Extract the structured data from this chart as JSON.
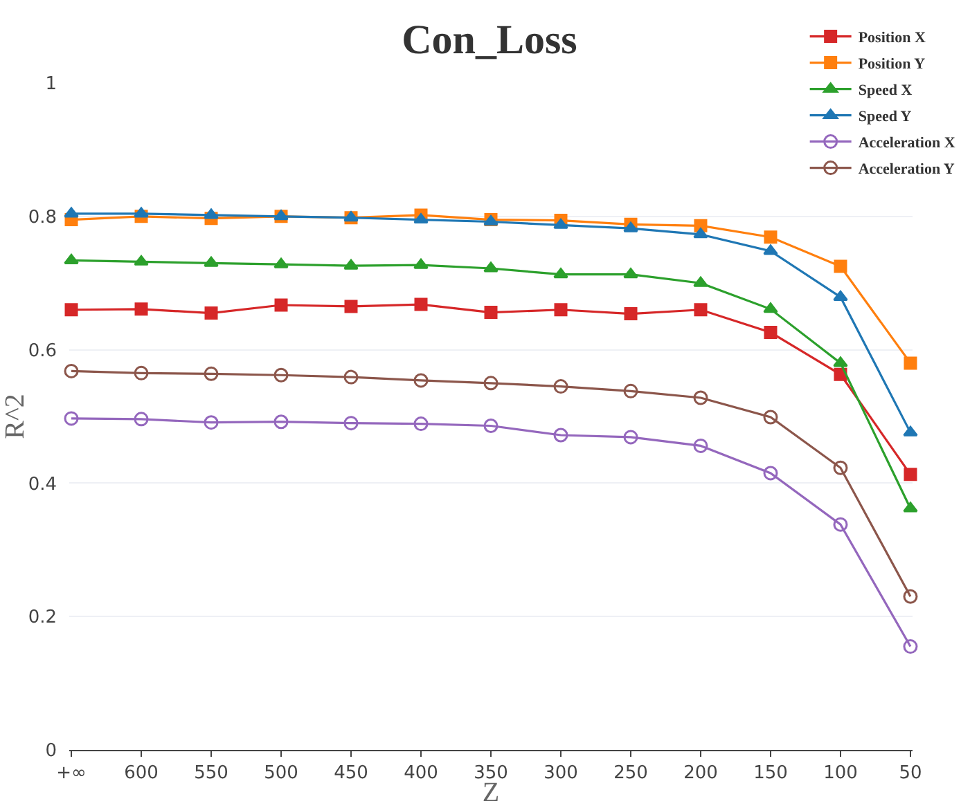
{
  "chart_data": {
    "type": "line",
    "title": "Con_Loss",
    "xlabel": "Z",
    "ylabel": "R^2",
    "categories": [
      "+∞",
      "600",
      "550",
      "500",
      "450",
      "400",
      "350",
      "300",
      "250",
      "200",
      "150",
      "100",
      "50"
    ],
    "ylim": [
      0,
      1
    ],
    "yticks": [
      0,
      0.2,
      0.4,
      0.6,
      0.8,
      1
    ],
    "grid": "y",
    "legend": "top right",
    "series": [
      {
        "name": "Position X",
        "color": "#d62728",
        "marker": "square",
        "values": [
          0.66,
          0.661,
          0.655,
          0.667,
          0.665,
          0.668,
          0.656,
          0.66,
          0.654,
          0.66,
          0.626,
          0.563,
          0.413
        ]
      },
      {
        "name": "Position Y",
        "color": "#ff7f0e",
        "marker": "square",
        "values": [
          0.795,
          0.8,
          0.797,
          0.8,
          0.798,
          0.802,
          0.795,
          0.794,
          0.788,
          0.786,
          0.769,
          0.725,
          0.58
        ]
      },
      {
        "name": "Speed X",
        "color": "#2ca02c",
        "marker": "triangle",
        "values": [
          0.734,
          0.732,
          0.73,
          0.728,
          0.726,
          0.727,
          0.722,
          0.713,
          0.713,
          0.7,
          0.661,
          0.58,
          0.362
        ]
      },
      {
        "name": "Speed Y",
        "color": "#1f77b4",
        "marker": "triangle",
        "values": [
          0.804,
          0.804,
          0.802,
          0.8,
          0.798,
          0.795,
          0.792,
          0.787,
          0.782,
          0.773,
          0.748,
          0.679,
          0.476
        ]
      },
      {
        "name": "Acceleration X",
        "color": "#9467bd",
        "marker": "circle",
        "values": [
          0.497,
          0.496,
          0.491,
          0.492,
          0.49,
          0.489,
          0.486,
          0.472,
          0.469,
          0.456,
          0.415,
          0.338,
          0.155
        ]
      },
      {
        "name": "Acceleration Y",
        "color": "#8c564b",
        "marker": "circle",
        "values": [
          0.568,
          0.565,
          0.564,
          0.562,
          0.559,
          0.554,
          0.55,
          0.545,
          0.538,
          0.528,
          0.499,
          0.423,
          0.23
        ]
      }
    ]
  }
}
